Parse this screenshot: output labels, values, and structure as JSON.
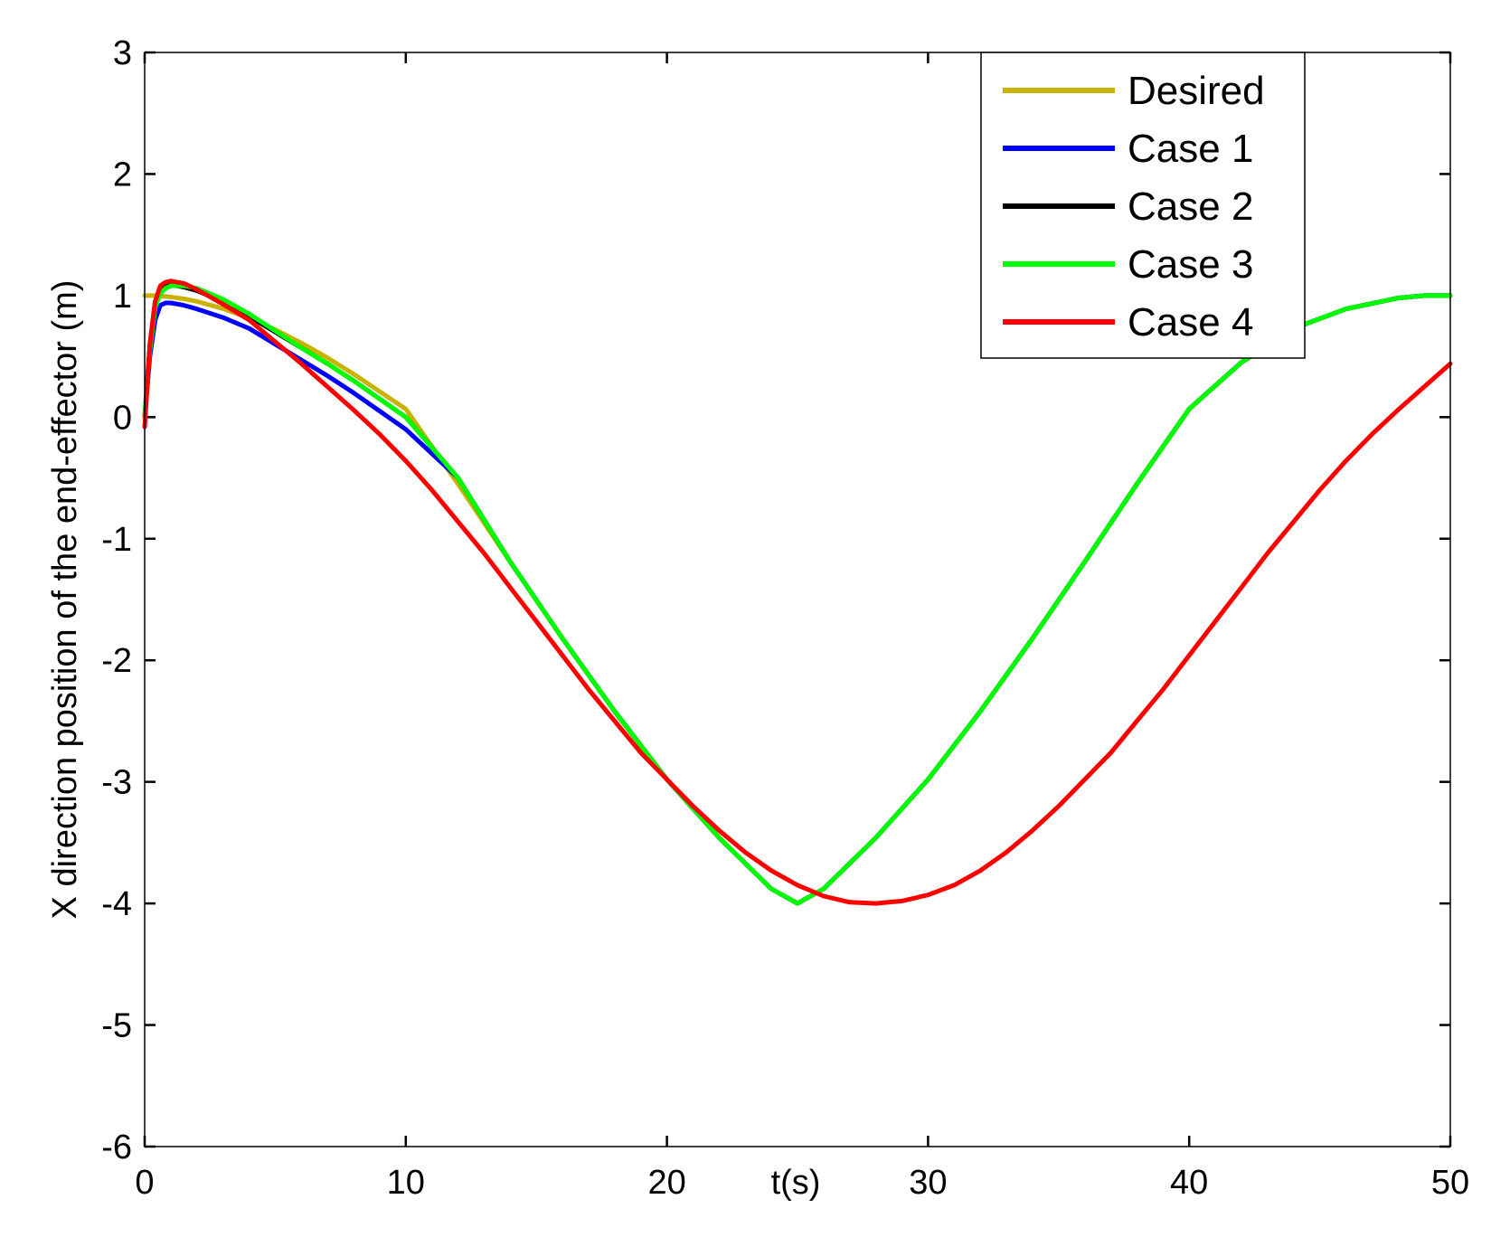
{
  "chart_data": {
    "type": "line",
    "title": "",
    "xlabel": "t(s)",
    "ylabel": "X direction position of the end-effector (m)",
    "xlim": [
      0,
      50
    ],
    "ylim": [
      -6,
      3
    ],
    "xticks": [
      0,
      10,
      20,
      30,
      40,
      50
    ],
    "yticks": [
      3,
      2,
      1,
      0,
      -1,
      -2,
      -3,
      -4,
      -5,
      -6
    ],
    "xtick_labels": [
      "0",
      "10",
      "20",
      "30",
      "40",
      "50"
    ],
    "ytick_labels": [
      "3",
      "2",
      "1",
      "0",
      "-1",
      "-2",
      "-3",
      "-4",
      "-5",
      "-6"
    ],
    "grid": false,
    "legend_position": "top-right",
    "series": [
      {
        "name": "Desired",
        "color": "#c8b400",
        "x": [
          0,
          0.5,
          1,
          1.5,
          2,
          3,
          4,
          5,
          6,
          7,
          8,
          10,
          12,
          14,
          16,
          18,
          20,
          22,
          24,
          25,
          26,
          28,
          30,
          32,
          34,
          36,
          38,
          40,
          42,
          44,
          46,
          48,
          49,
          50
        ],
        "y": [
          1,
          1,
          0.988,
          0.973,
          0.952,
          0.893,
          0.815,
          0.72,
          0.61,
          0.488,
          0.355,
          0.067,
          -0.55,
          -1.19,
          -1.82,
          -2.42,
          -2.98,
          -3.46,
          -3.88,
          -4.0,
          -3.88,
          -3.46,
          -2.98,
          -2.42,
          -1.82,
          -1.19,
          -0.55,
          0.067,
          0.45,
          0.73,
          0.89,
          0.98,
          1.0,
          1.0
        ]
      },
      {
        "name": "Case 1",
        "color": "#0000ff",
        "x": [
          0,
          0.2,
          0.4,
          0.6,
          0.8,
          1,
          1.5,
          2,
          3,
          4,
          5,
          6,
          7,
          8,
          10,
          12,
          14,
          16,
          18,
          20,
          22,
          24,
          25,
          26,
          28,
          30,
          32,
          34,
          36,
          38,
          40,
          42,
          44,
          46,
          48,
          49,
          50
        ],
        "y": [
          0,
          0.5,
          0.8,
          0.92,
          0.94,
          0.94,
          0.92,
          0.89,
          0.82,
          0.73,
          0.6,
          0.47,
          0.34,
          0.2,
          -0.1,
          -0.5,
          -1.19,
          -1.82,
          -2.42,
          -2.98,
          -3.46,
          -3.88,
          -4.0,
          -3.88,
          -3.46,
          -2.98,
          -2.42,
          -1.82,
          -1.19,
          -0.55,
          0.067,
          0.45,
          0.73,
          0.89,
          0.98,
          1.0,
          1.0
        ]
      },
      {
        "name": "Case 2",
        "color": "#000000",
        "x": [
          0,
          0.2,
          0.4,
          0.6,
          0.8,
          1,
          1.5,
          2,
          3,
          4,
          5,
          6,
          7,
          8,
          10,
          12,
          14,
          16,
          18,
          20,
          22,
          24,
          25,
          26,
          28,
          30,
          32,
          34,
          36,
          38,
          40,
          42,
          44,
          46,
          48,
          49,
          50
        ],
        "y": [
          0,
          0.6,
          0.95,
          1.05,
          1.08,
          1.09,
          1.07,
          1.04,
          0.95,
          0.83,
          0.7,
          0.57,
          0.44,
          0.3,
          0.0,
          -0.5,
          -1.19,
          -1.82,
          -2.42,
          -2.98,
          -3.46,
          -3.88,
          -4.0,
          -3.88,
          -3.46,
          -2.98,
          -2.42,
          -1.82,
          -1.19,
          -0.55,
          0.067,
          0.45,
          0.73,
          0.89,
          0.98,
          1.0,
          1.0
        ]
      },
      {
        "name": "Case 3",
        "color": "#00ff00",
        "x": [
          0,
          0.2,
          0.4,
          0.6,
          0.8,
          1,
          1.5,
          2,
          3,
          4,
          5,
          6,
          7,
          8,
          10,
          12,
          14,
          16,
          18,
          20,
          22,
          24,
          25,
          26,
          28,
          30,
          32,
          34,
          36,
          38,
          40,
          42,
          44,
          46,
          48,
          49,
          50
        ],
        "y": [
          0,
          0.55,
          0.9,
          1.02,
          1.06,
          1.08,
          1.08,
          1.06,
          0.97,
          0.85,
          0.71,
          0.57,
          0.44,
          0.3,
          0.0,
          -0.5,
          -1.19,
          -1.82,
          -2.42,
          -2.98,
          -3.46,
          -3.88,
          -4.0,
          -3.88,
          -3.46,
          -2.98,
          -2.42,
          -1.82,
          -1.19,
          -0.55,
          0.067,
          0.45,
          0.73,
          0.89,
          0.98,
          1.0,
          1.0
        ]
      },
      {
        "name": "Case 4",
        "color": "#ff0000",
        "x": [
          0,
          0.2,
          0.4,
          0.6,
          0.8,
          1,
          1.5,
          2,
          3,
          4,
          5,
          6,
          7,
          8,
          9,
          10,
          11,
          12,
          13,
          14,
          15,
          16,
          17,
          18,
          19,
          20,
          21,
          22,
          23,
          24,
          25,
          26,
          27,
          28,
          29,
          30,
          31,
          32,
          33,
          34,
          35,
          36,
          37,
          38,
          39,
          40,
          41,
          42,
          43,
          44,
          45,
          46,
          47,
          48,
          49,
          50
        ],
        "y": [
          -0.08,
          0.6,
          0.95,
          1.08,
          1.11,
          1.12,
          1.1,
          1.05,
          0.93,
          0.8,
          0.62,
          0.44,
          0.25,
          0.06,
          -0.14,
          -0.36,
          -0.6,
          -0.86,
          -1.12,
          -1.4,
          -1.68,
          -1.96,
          -2.24,
          -2.5,
          -2.76,
          -2.98,
          -3.2,
          -3.4,
          -3.58,
          -3.73,
          -3.85,
          -3.94,
          -3.99,
          -4.0,
          -3.98,
          -3.93,
          -3.85,
          -3.73,
          -3.58,
          -3.4,
          -3.2,
          -2.98,
          -2.76,
          -2.5,
          -2.24,
          -1.96,
          -1.68,
          -1.4,
          -1.12,
          -0.86,
          -0.6,
          -0.36,
          -0.14,
          0.06,
          0.25,
          0.44
        ]
      }
    ]
  }
}
